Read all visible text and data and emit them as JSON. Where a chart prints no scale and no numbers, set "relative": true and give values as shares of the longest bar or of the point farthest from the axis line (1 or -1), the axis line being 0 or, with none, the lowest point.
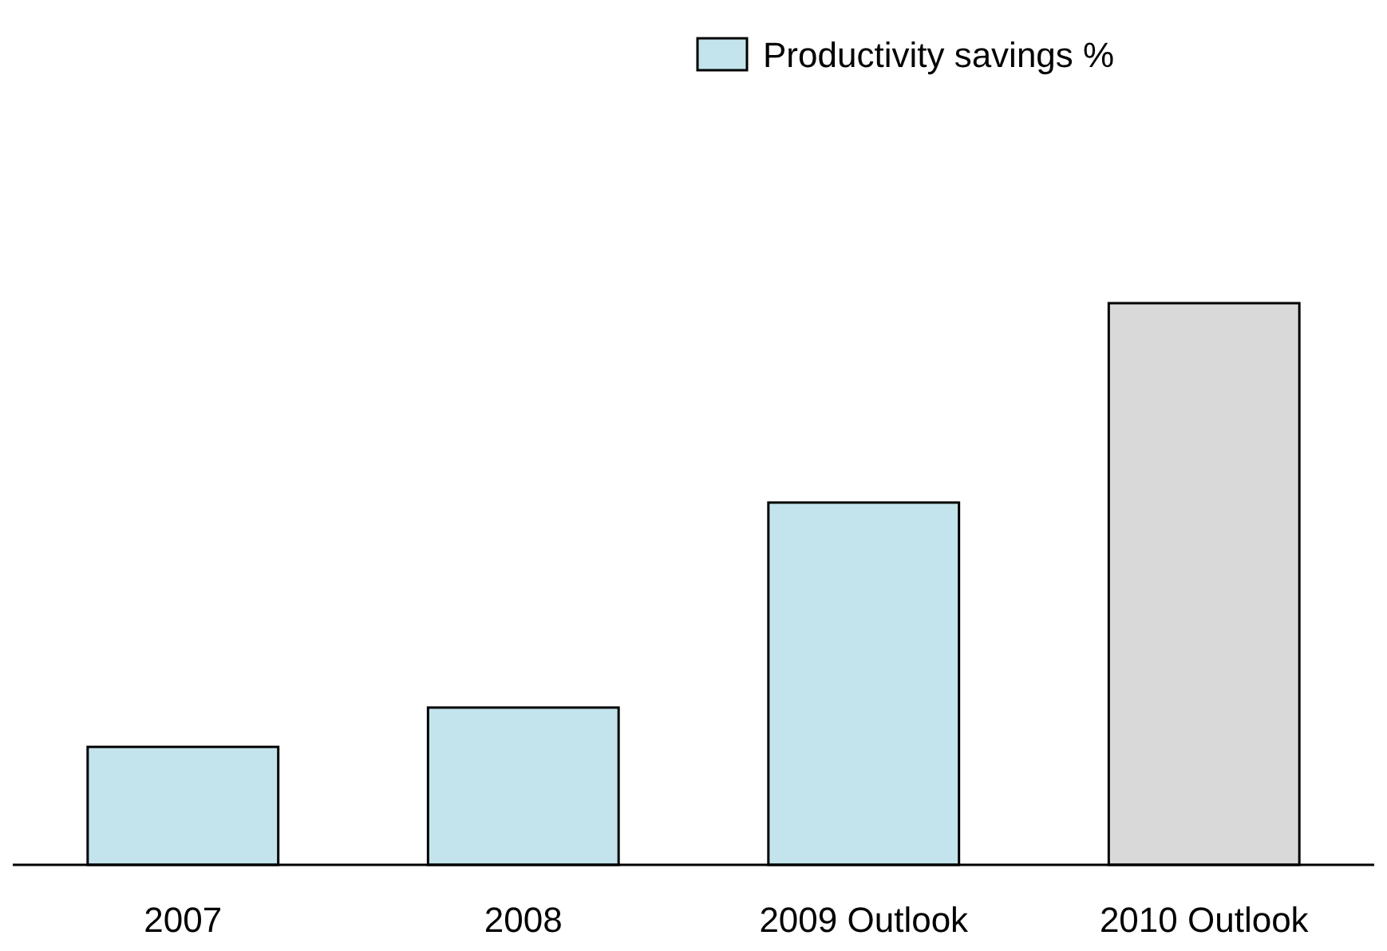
{
  "chart_data": {
    "type": "bar",
    "relative": true,
    "categories": [
      "2007",
      "2008",
      "2009 Outlook",
      "2010 Outlook"
    ],
    "series": [
      {
        "name": "Productivity savings %",
        "color": "#c3e4ec",
        "colors": [
          "#c3e4ec",
          "#c3e4ec",
          "#c3e4ec",
          "#d9d9d9"
        ],
        "values": [
          0.21,
          0.28,
          0.645,
          1
        ]
      }
    ],
    "legend": "top right"
  }
}
